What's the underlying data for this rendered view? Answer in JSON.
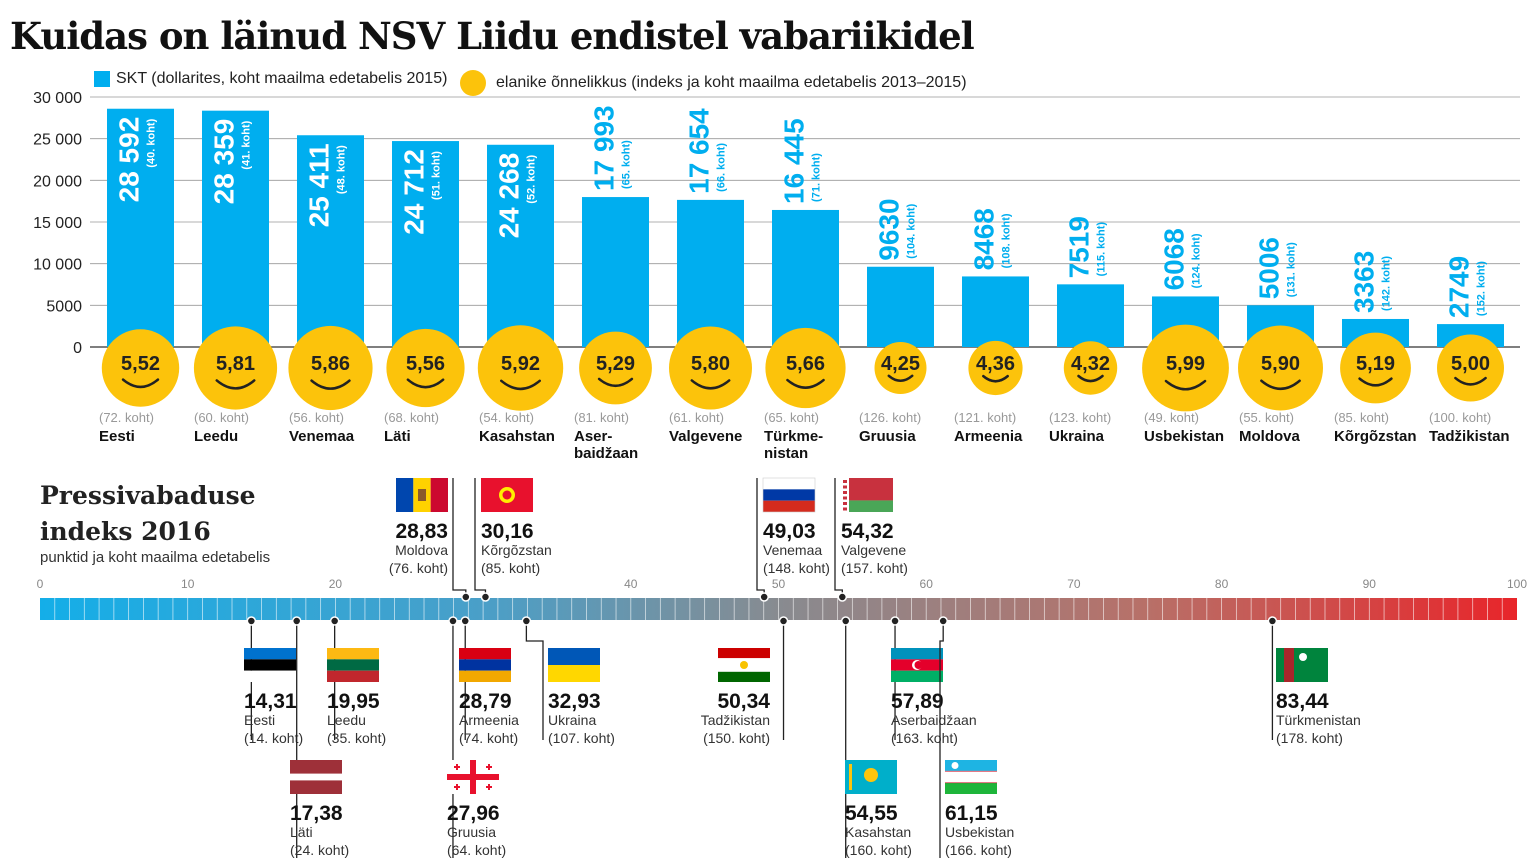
{
  "title": "Kuidas on läinud NSV Liidu endistel vabariikidel",
  "legend": {
    "gdp": "SKT (dollarites, koht maailma edetabelis 2015)",
    "happiness": "elanike õnnelikkus (indeks ja koht maailma edetabelis 2013–2015)"
  },
  "colors": {
    "bar": "#00aeef",
    "smiley": "#fcc30b",
    "text_bar": "#00aeef"
  },
  "chart_data": [
    {
      "type": "bar",
      "ylim": [
        0,
        30000
      ],
      "yticks": [
        "0",
        "5000",
        "10 000",
        "15 000",
        "20 000",
        "25 000",
        "30 000"
      ],
      "ytick_values": [
        0,
        5000,
        10000,
        15000,
        20000,
        25000,
        30000
      ],
      "categories": [
        "Eesti",
        "Leedu",
        "Venemaa",
        "Läti",
        "Kasahstan",
        "Aser-\nbaidžaan",
        "Valgevene",
        "Türkme-\nnistan",
        "Gruusia",
        "Armeenia",
        "Ukraina",
        "Usbekistan",
        "Moldova",
        "Kõrgõzstan",
        "Tadžikistan"
      ],
      "values": [
        28592,
        28359,
        25411,
        24712,
        24268,
        17993,
        17654,
        16445,
        9630,
        8468,
        7519,
        6068,
        5006,
        3363,
        2749
      ],
      "value_labels": [
        "28 592",
        "28 359",
        "25 411",
        "24 712",
        "24 268",
        "17 993",
        "17 654",
        "16 445",
        "9630",
        "8468",
        "7519",
        "6068",
        "5006",
        "3363",
        "2749"
      ],
      "rank_labels": [
        "(40. koht)",
        "(41. koht)",
        "(48. koht)",
        "(51. koht)",
        "(52. koht)",
        "(65. koht)",
        "(66. koht)",
        "(71. koht)",
        "(104. koht)",
        "(108. koht)",
        "(115. koht)",
        "(124. koht)",
        "(131. koht)",
        "(142. koht)",
        "(152. koht)"
      ],
      "happiness": [
        "5,52",
        "5,81",
        "5,86",
        "5,56",
        "5,92",
        "5,29",
        "5,80",
        "5,66",
        "4,25",
        "4,36",
        "4,32",
        "5,99",
        "5,90",
        "5,19",
        "5,00"
      ],
      "happiness_rank": [
        "(72. koht)",
        "(60. koht)",
        "(56. koht)",
        "(68. koht)",
        "(54. koht)",
        "(81. koht)",
        "(61. koht)",
        "(65. koht)",
        "(126. koht)",
        "(121. koht)",
        "(123. koht)",
        "(49. koht)",
        "(55. koht)",
        "(85. koht)",
        "(100. koht)"
      ]
    },
    {
      "type": "scatter",
      "title": "Pressivabaduse\nindeks 2016",
      "subtitle": "punktid ja koht maailma edetabelis",
      "xlim": [
        0,
        100
      ],
      "xticks": [
        "0",
        "10",
        "20",
        "40",
        "50",
        "60",
        "70",
        "80",
        "90",
        "100"
      ],
      "xtick_values": [
        0,
        10,
        20,
        40,
        50,
        60,
        70,
        80,
        90,
        100
      ],
      "points": [
        {
          "country": "Moldova",
          "value": 28.83,
          "label": "28,83",
          "rank": "(76. koht)",
          "flag": "moldova"
        },
        {
          "country": "Kõrgõzstan",
          "value": 30.16,
          "label": "30,16",
          "rank": "(85. koht)",
          "flag": "kyrgyzstan"
        },
        {
          "country": "Venemaa",
          "value": 49.03,
          "label": "49,03",
          "rank": "(148. koht)",
          "flag": "russia"
        },
        {
          "country": "Valgevene",
          "value": 54.32,
          "label": "54,32",
          "rank": "(157. koht)",
          "flag": "belarus"
        },
        {
          "country": "Eesti",
          "value": 14.31,
          "label": "14,31",
          "rank": "(14. koht)",
          "flag": "estonia"
        },
        {
          "country": "Leedu",
          "value": 19.95,
          "label": "19,95",
          "rank": "(35. koht)",
          "flag": "lithuania"
        },
        {
          "country": "Läti",
          "value": 17.38,
          "label": "17,38",
          "rank": "(24. koht)",
          "flag": "latvia"
        },
        {
          "country": "Armeenia",
          "value": 28.79,
          "label": "28,79",
          "rank": "(74. koht)",
          "flag": "armenia"
        },
        {
          "country": "Gruusia",
          "value": 27.96,
          "label": "27,96",
          "rank": "(64. koht)",
          "flag": "georgia"
        },
        {
          "country": "Ukraina",
          "value": 32.93,
          "label": "32,93",
          "rank": "(107. koht)",
          "flag": "ukraine"
        },
        {
          "country": "Tadžikistan",
          "value": 50.34,
          "label": "50,34",
          "rank": "(150. koht)",
          "flag": "tajikistan"
        },
        {
          "country": "Kasahstan",
          "value": 54.55,
          "label": "54,55",
          "rank": "(160. koht)",
          "flag": "kazakhstan"
        },
        {
          "country": "Aserbaidžaan",
          "value": 57.89,
          "label": "57,89",
          "rank": "(163. koht)",
          "flag": "azerbaijan"
        },
        {
          "country": "Usbekistan",
          "value": 61.15,
          "label": "61,15",
          "rank": "(166. koht)",
          "flag": "uzbekistan"
        },
        {
          "country": "Türkmenistan",
          "value": 83.44,
          "label": "83,44",
          "rank": "(178. koht)",
          "flag": "turkmenistan"
        }
      ]
    }
  ]
}
